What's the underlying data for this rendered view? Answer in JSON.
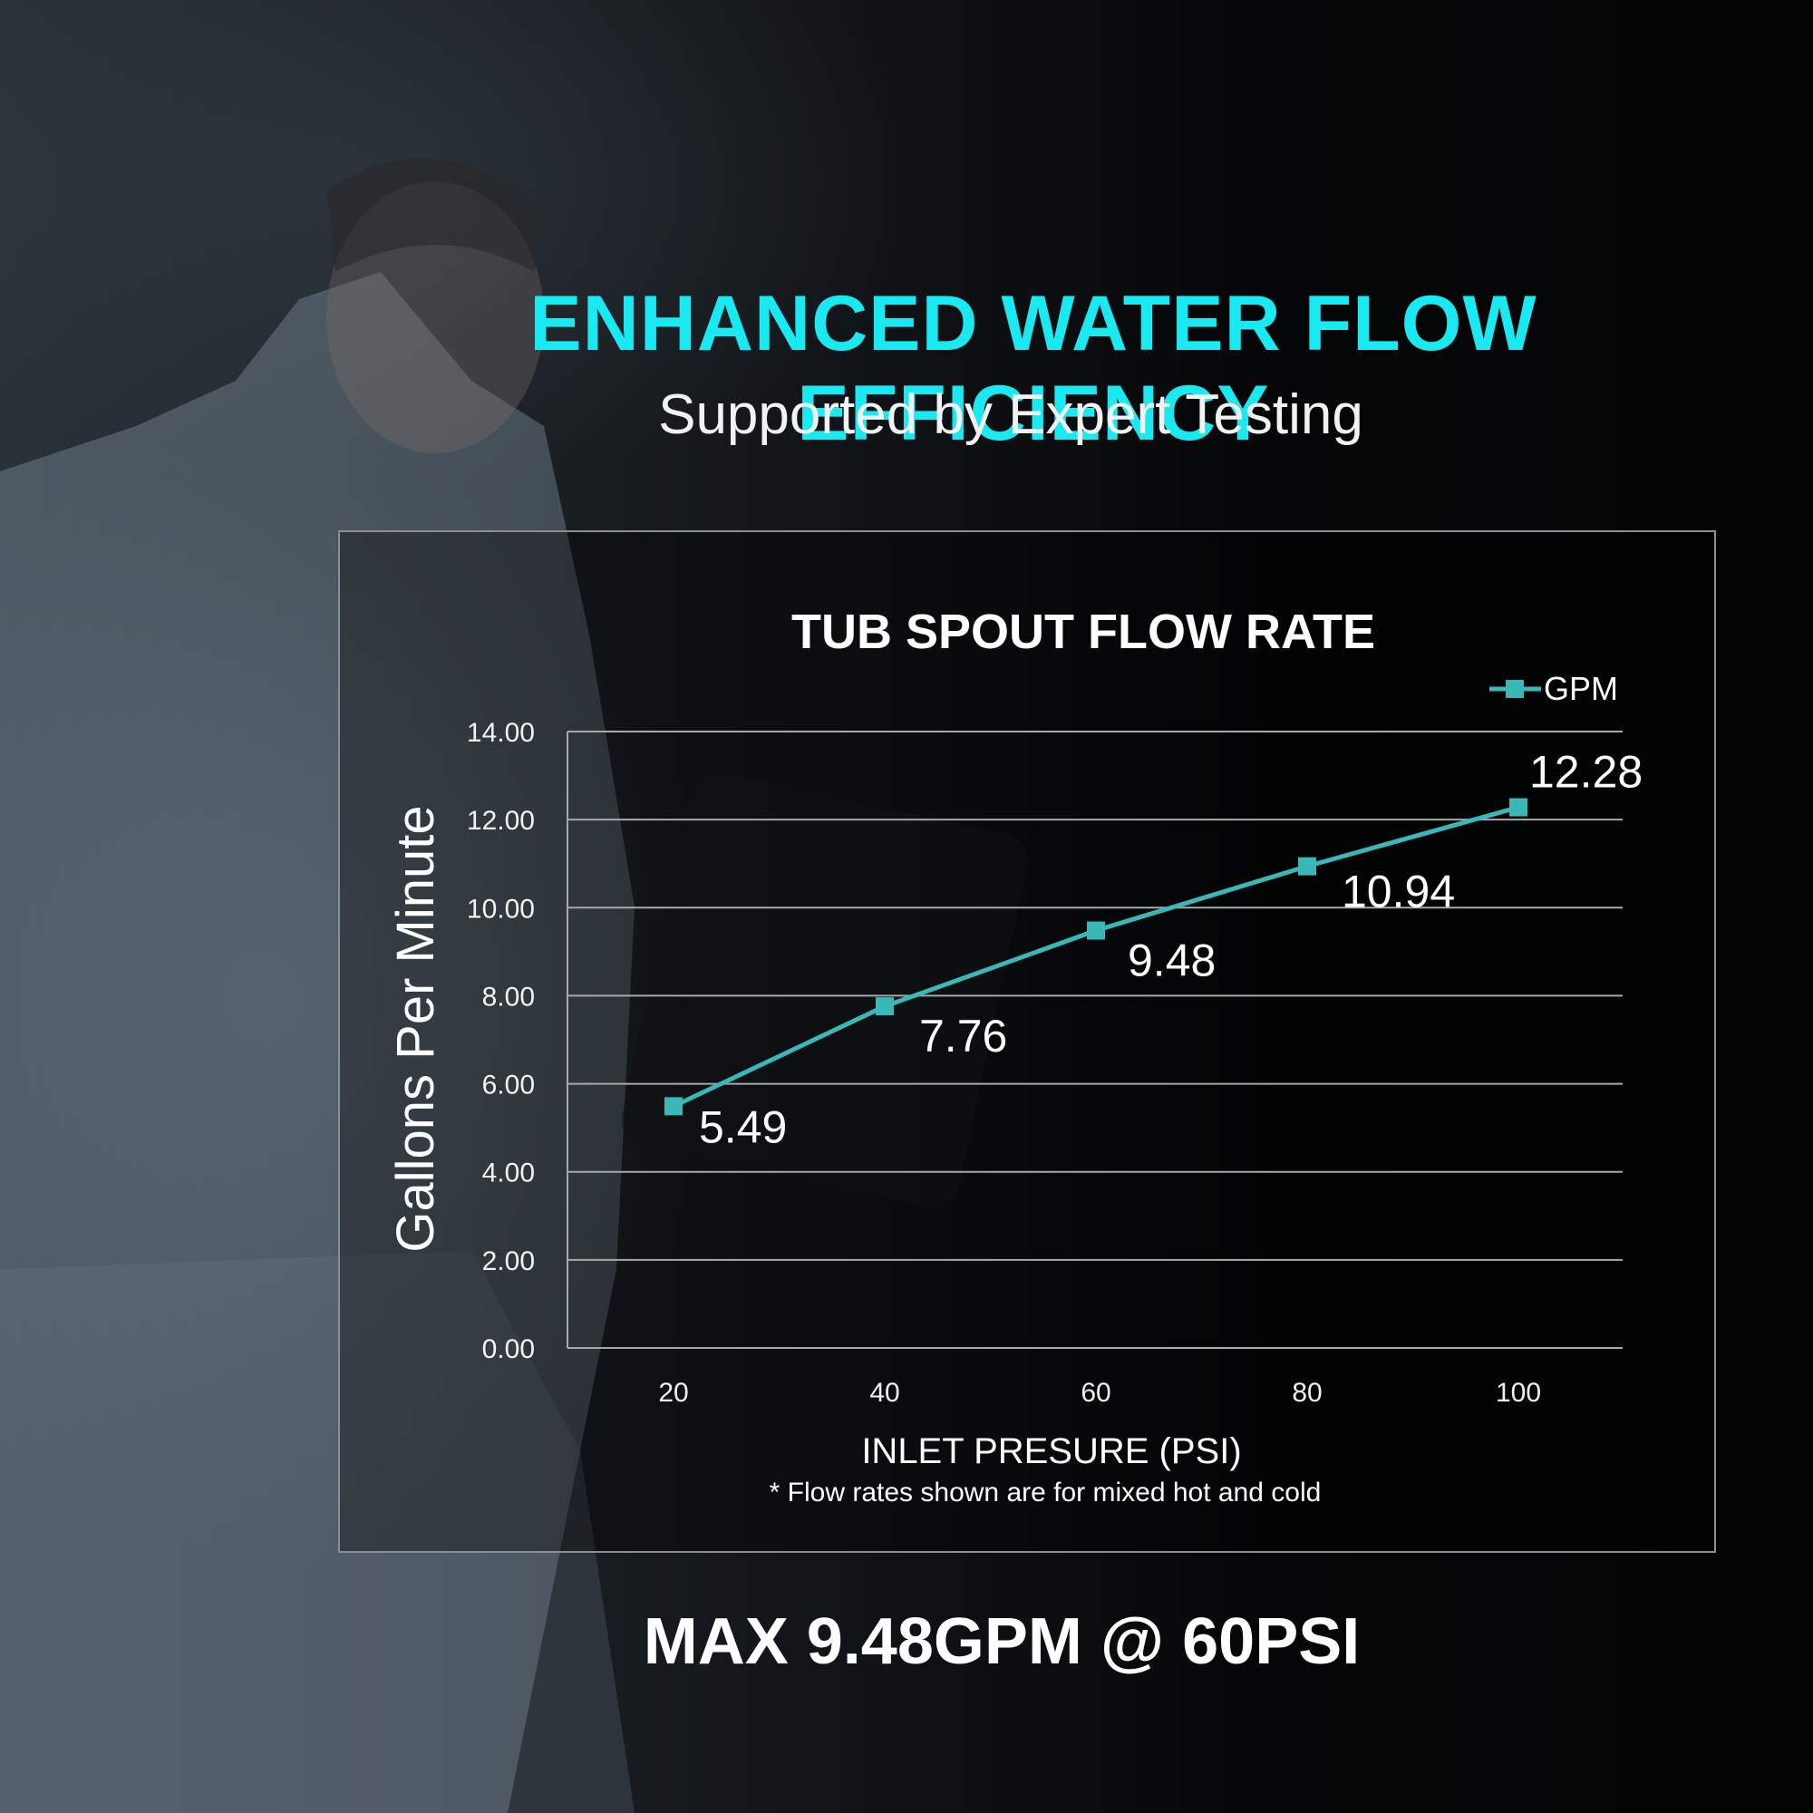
{
  "header": {
    "headline": "ENHANCED WATER FLOW EFFICIENCY",
    "subheadline": "Supported by Expert Testing"
  },
  "footer": {
    "max_claim": "MAX 9.48GPM @ 60PSI"
  },
  "colors": {
    "headline": "#19e9f0",
    "series": "#3ab7b7",
    "gridline": "#a9a9a9"
  },
  "chart_data": {
    "type": "line",
    "title": "TUB SPOUT FLOW RATE",
    "xlabel": "INLET PRESURE (PSI)",
    "ylabel": "Gallons Per Minute",
    "note": "* Flow rates shown are for mixed hot and cold",
    "x": [
      20,
      40,
      60,
      80,
      100
    ],
    "x_tick_labels": [
      "20",
      "40",
      "60",
      "80",
      "100"
    ],
    "ylim": [
      0,
      14
    ],
    "y_tick_labels": [
      "0.00",
      "2.00",
      "4.00",
      "6.00",
      "8.00",
      "10.00",
      "12.00",
      "14.00"
    ],
    "grid": true,
    "legend_position": "top-right",
    "series": [
      {
        "name": "GPM",
        "values": [
          5.49,
          7.76,
          9.48,
          10.94,
          12.28
        ],
        "data_labels": [
          "5.49",
          "7.76",
          "9.48",
          "10.94",
          "12.28"
        ]
      }
    ]
  }
}
